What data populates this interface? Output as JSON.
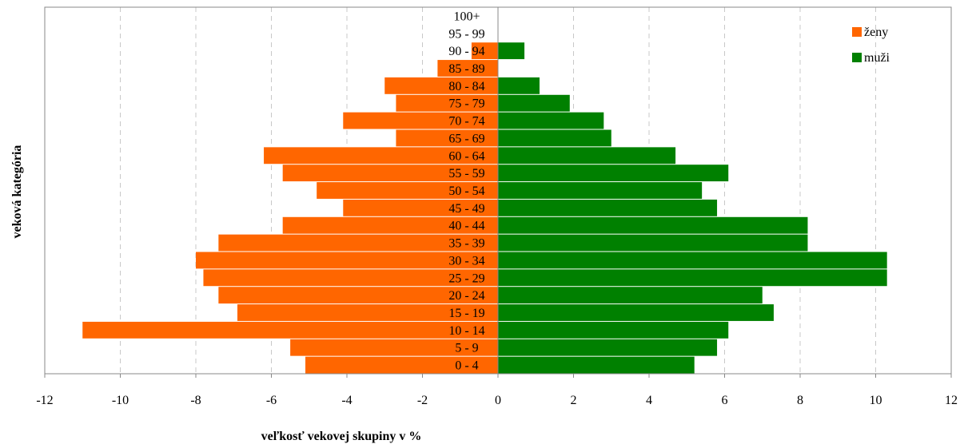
{
  "chart_data": {
    "type": "bar",
    "orientation": "horizontal",
    "layout": "population-pyramid",
    "xlabel": "veľkosť vekovej skupiny v %",
    "ylabel": "veková kategória",
    "xlim": [
      -12,
      12
    ],
    "xticks": [
      -12,
      -10,
      -8,
      -6,
      -4,
      -2,
      0,
      2,
      4,
      6,
      8,
      10,
      12
    ],
    "grid": "vertical-dashed",
    "legend_position": "top-right",
    "categories": [
      "0 - 4",
      "5 - 9",
      "10 - 14",
      "15 - 19",
      "20 - 24",
      "25 - 29",
      "30 - 34",
      "35 - 39",
      "40 - 44",
      "45 - 49",
      "50 - 54",
      "55 - 59",
      "60 - 64",
      "65 - 69",
      "70 - 74",
      "75 - 79",
      "80 - 84",
      "85 - 89",
      "90 - 94",
      "95 - 99",
      "100+"
    ],
    "series": [
      {
        "name": "ženy",
        "color": "#ff6600",
        "values": [
          -5.1,
          -5.5,
          -11.0,
          -6.9,
          -7.4,
          -7.8,
          -8.0,
          -7.4,
          -5.7,
          -4.1,
          -4.8,
          -5.7,
          -6.2,
          -2.7,
          -4.1,
          -2.7,
          -3.0,
          -1.6,
          -0.7,
          0,
          0
        ]
      },
      {
        "name": "muži",
        "color": "#008000",
        "values": [
          5.2,
          5.8,
          6.1,
          7.3,
          7.0,
          10.3,
          10.3,
          8.2,
          8.2,
          5.8,
          5.4,
          6.1,
          4.7,
          3.0,
          2.8,
          1.9,
          1.1,
          0,
          0.7,
          0,
          0
        ]
      }
    ]
  }
}
